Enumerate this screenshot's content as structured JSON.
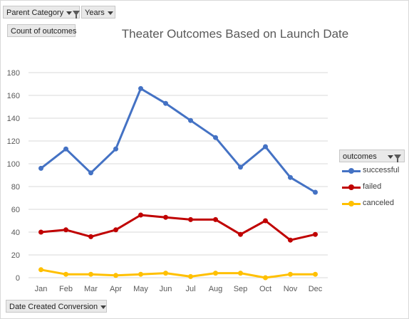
{
  "pivot": {
    "filter_fields": [
      {
        "label": "Parent Category",
        "icon": "filter-icon"
      },
      {
        "label": "Years",
        "icon": "chevron-down-icon"
      }
    ],
    "values_field": "Count of outcomes",
    "axis_field": "Date Created Conversion",
    "legend_field": "outcomes"
  },
  "chart_data": {
    "type": "line",
    "title": "Theater Outcomes Based on Launch Date",
    "xlabel": "",
    "ylabel": "",
    "categories": [
      "Jan",
      "Feb",
      "Mar",
      "Apr",
      "May",
      "Jun",
      "Jul",
      "Aug",
      "Sep",
      "Oct",
      "Nov",
      "Dec"
    ],
    "ylim": [
      0,
      180
    ],
    "yticks": [
      0,
      20,
      40,
      60,
      80,
      100,
      120,
      140,
      160,
      180
    ],
    "grid": true,
    "legend_position": "right",
    "series": [
      {
        "name": "successful",
        "color": "#4472c4",
        "values": [
          96,
          113,
          92,
          113,
          166,
          153,
          138,
          123,
          97,
          115,
          88,
          75
        ]
      },
      {
        "name": "failed",
        "color": "#c00000",
        "values": [
          40,
          42,
          36,
          42,
          55,
          53,
          51,
          51,
          38,
          50,
          33,
          38
        ]
      },
      {
        "name": "canceled",
        "color": "#ffc000",
        "values": [
          7,
          3,
          3,
          2,
          3,
          4,
          1,
          4,
          4,
          0,
          3,
          3
        ]
      }
    ]
  }
}
